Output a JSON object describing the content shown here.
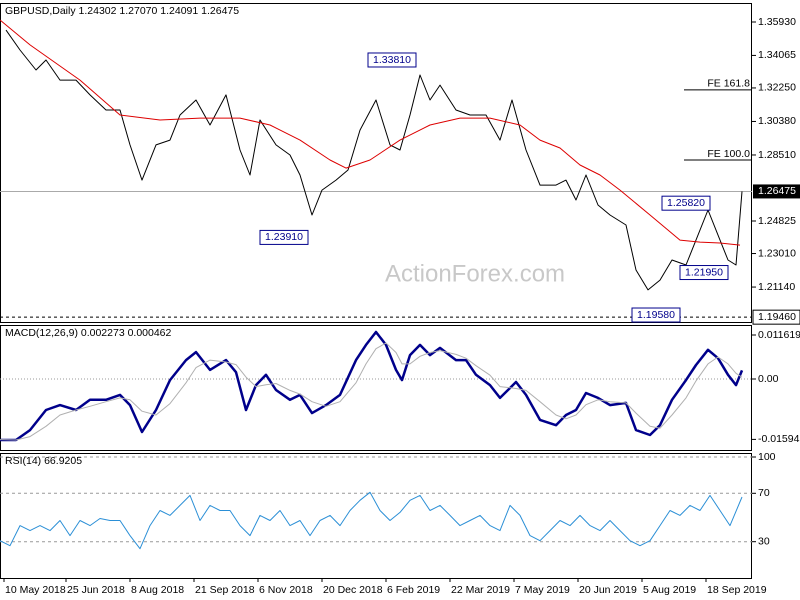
{
  "chart_data": [
    {
      "type": "line",
      "title": "GBPUSD,Daily  1.24302 1.27070 1.24091 1.26475",
      "watermark": "ActionForex.com",
      "xlim": [
        0,
        376
      ],
      "ylim": [
        1.1919,
        1.3699
      ],
      "yticks": [
        {
          "value": 1.3593,
          "label": "1.35930"
        },
        1.34065,
        {
          "value": 1.3225,
          "label": "1.32250"
        },
        {
          "value": 1.3038,
          "label": "1.30380"
        },
        {
          "value": 1.2851,
          "label": "1.28510"
        },
        1.24825,
        {
          "value": 1.2301,
          "label": "1.23010"
        },
        {
          "value": 1.2114,
          "label": "1.21140"
        }
      ],
      "grid": false,
      "series": [
        {
          "color": "#000000",
          "width": 1,
          "x": [
            3,
            10,
            18,
            23,
            30,
            38,
            45,
            53,
            60,
            65,
            71,
            78,
            85,
            90,
            98,
            105,
            113,
            120,
            125,
            130,
            138,
            145,
            150,
            156,
            161,
            168,
            174,
            180,
            188,
            195,
            200,
            205,
            210,
            215,
            220,
            228,
            235,
            243,
            250,
            256,
            263,
            270,
            278,
            283,
            288,
            293,
            299,
            305,
            313,
            318,
            324,
            330,
            336,
            343,
            348,
            354,
            359,
            364,
            368,
            371
          ],
          "values": [
            1.3548,
            1.3437,
            1.3325,
            1.3381,
            1.3269,
            1.3269,
            1.3186,
            1.3102,
            1.3102,
            1.2907,
            1.2711,
            1.2907,
            1.2934,
            1.3074,
            1.3158,
            1.3018,
            1.3186,
            1.2879,
            1.2739,
            1.3046,
            1.2907,
            1.2851,
            1.2739,
            1.2516,
            1.2655,
            1.2711,
            1.2767,
            1.299,
            1.3158,
            1.2907,
            1.2879,
            1.3074,
            1.3297,
            1.3158,
            1.3241,
            1.3102,
            1.3074,
            1.3074,
            1.2934,
            1.3158,
            1.2879,
            1.2683,
            1.2683,
            1.2711,
            1.26,
            1.2739,
            1.2572,
            1.2516,
            1.246,
            1.2209,
            1.2098,
            1.2153,
            1.2265,
            1.2237,
            1.2376,
            1.2544,
            1.2404,
            1.2265,
            1.2237,
            1.26475
          ]
        },
        {
          "color": "#dd0000",
          "width": 1,
          "x": [
            0,
            15,
            40,
            60,
            80,
            100,
            120,
            135,
            150,
            165,
            173,
            185,
            200,
            215,
            230,
            245,
            260,
            270,
            280,
            290,
            300,
            310,
            325,
            340,
            350,
            360,
            370
          ],
          "values": [
            1.3604,
            1.3465,
            1.3269,
            1.3074,
            1.3046,
            1.3057,
            1.3057,
            1.3018,
            1.2934,
            1.2823,
            1.2778,
            1.2823,
            1.2934,
            1.3018,
            1.3057,
            1.3057,
            1.3018,
            1.2934,
            1.289,
            1.2795,
            1.2739,
            1.2655,
            1.2516,
            1.2376,
            1.2365,
            1.236,
            1.2348
          ]
        }
      ],
      "annotations": [
        {
          "x": 155,
          "value": 1.2391,
          "label": "1.23910"
        },
        {
          "x": 209,
          "value": 1.3381,
          "label": "1.33810"
        },
        {
          "x": 341,
          "value": 1.1958,
          "label": "1.19580"
        },
        {
          "x": 356,
          "value": 1.2582,
          "label": "1.25820"
        },
        {
          "x": 365,
          "value": 1.2195,
          "label": "1.21950"
        }
      ],
      "levels": [
        {
          "value": 1.3214,
          "label": "FE 161.8"
        },
        {
          "value": 1.2823,
          "label": "FE 100.0"
        }
      ],
      "price_line": {
        "value": 1.26475,
        "label": "1.26475"
      },
      "support_line": {
        "value": 1.1946,
        "label": "1.19460"
      }
    },
    {
      "type": "line",
      "title": "MACD(12,26,9) 0.002273 0.000462",
      "xlim": [
        0,
        376
      ],
      "ylim": [
        -0.01875,
        0.01426
      ],
      "yticks": [
        0.011619,
        {
          "value": 0,
          "label": "0.00"
        },
        -0.015949
      ],
      "grid": false,
      "zero_line": true,
      "series": [
        {
          "color": "#00008b",
          "width": 2.5,
          "x": [
            0,
            8,
            15,
            23,
            30,
            38,
            45,
            53,
            60,
            65,
            71,
            78,
            85,
            93,
            98,
            105,
            113,
            118,
            123,
            128,
            133,
            138,
            145,
            150,
            156,
            163,
            170,
            178,
            183,
            188,
            193,
            198,
            201,
            205,
            210,
            215,
            220,
            228,
            233,
            238,
            245,
            250,
            258,
            263,
            270,
            278,
            283,
            288,
            293,
            299,
            305,
            313,
            318,
            325,
            330,
            336,
            343,
            348,
            354,
            359,
            364,
            368,
            371
          ],
          "values": [
            -0.0161,
            -0.0161,
            -0.0135,
            -0.0082,
            -0.0069,
            -0.0082,
            -0.0055,
            -0.0055,
            -0.0042,
            -0.0069,
            -0.014,
            -0.0082,
            -0.0003,
            0.005,
            0.0071,
            0.0024,
            0.005,
            0.0018,
            -0.0082,
            -0.0016,
            0.0011,
            -0.0029,
            -0.0055,
            -0.0042,
            -0.009,
            -0.0069,
            -0.0042,
            0.005,
            0.009,
            0.0124,
            0.009,
            0.0024,
            -0.0003,
            0.0063,
            0.009,
            0.0063,
            0.0082,
            0.005,
            0.005,
            0.0011,
            -0.0016,
            -0.005,
            -0.0008,
            -0.0042,
            -0.0108,
            -0.0122,
            -0.0095,
            -0.0082,
            -0.0037,
            -0.005,
            -0.0069,
            -0.0063,
            -0.0135,
            -0.0148,
            -0.0122,
            -0.0055,
            -0.0003,
            0.0037,
            0.0077,
            0.0055,
            0.0011,
            -0.0016,
            0.002273
          ]
        },
        {
          "color": "#b0b0b0",
          "width": 1,
          "x": [
            0,
            8,
            15,
            23,
            30,
            38,
            45,
            53,
            60,
            65,
            71,
            78,
            85,
            93,
            98,
            105,
            113,
            118,
            123,
            128,
            133,
            138,
            145,
            150,
            156,
            163,
            170,
            178,
            183,
            188,
            193,
            198,
            201,
            205,
            210,
            215,
            220,
            228,
            233,
            238,
            245,
            250,
            258,
            263,
            270,
            278,
            283,
            288,
            293,
            299,
            305,
            313,
            318,
            325,
            330,
            336,
            343,
            348,
            354,
            359,
            364,
            368,
            371
          ],
          "values": [
            -0.016,
            -0.0161,
            -0.0152,
            -0.0125,
            -0.0095,
            -0.0082,
            -0.0072,
            -0.006,
            -0.005,
            -0.0055,
            -0.0085,
            -0.0095,
            -0.0065,
            -0.001,
            0.003,
            0.005,
            0.0045,
            0.0038,
            0.0005,
            -0.002,
            -0.0015,
            -0.0012,
            -0.003,
            -0.004,
            -0.006,
            -0.0072,
            -0.006,
            -0.001,
            0.004,
            0.008,
            0.0095,
            0.007,
            0.004,
            0.004,
            0.006,
            0.007,
            0.0075,
            0.0065,
            0.0055,
            0.0035,
            0.001,
            -0.002,
            -0.0025,
            -0.003,
            -0.006,
            -0.0095,
            -0.0105,
            -0.0095,
            -0.0068,
            -0.0055,
            -0.006,
            -0.0063,
            -0.009,
            -0.0125,
            -0.013,
            -0.0095,
            -0.005,
            -0.0005,
            0.004,
            0.0058,
            0.004,
            0.0015,
            0.000462
          ]
        }
      ]
    },
    {
      "type": "line",
      "title": "RSI(14) 66.9205",
      "xlim": [
        0,
        376
      ],
      "ylim": [
        0,
        103.3
      ],
      "yticks": [
        100,
        70,
        30
      ],
      "grid": true,
      "xticks": [
        {
          "value": 2,
          "label": "10 May 2018"
        },
        {
          "value": 33,
          "label": "25 Jun 2018"
        },
        {
          "value": 65,
          "label": "8 Aug 2018"
        },
        {
          "value": 97,
          "label": "21 Sep 2018"
        },
        {
          "value": 129,
          "label": "6 Nov 2018"
        },
        {
          "value": 161,
          "label": "20 Dec 2018"
        },
        {
          "value": 193,
          "label": "6 Feb 2019"
        },
        {
          "value": 225,
          "label": "22 Mar 2019"
        },
        {
          "value": 257,
          "label": "7 May 2019"
        },
        {
          "value": 289,
          "label": "20 Jun 2019"
        },
        {
          "value": 321,
          "label": "5 Aug 2019"
        },
        {
          "value": 353,
          "label": "18 Sep 2019"
        }
      ],
      "series": [
        {
          "color": "#2b8fd6",
          "width": 1,
          "x": [
            0,
            5,
            10,
            15,
            20,
            25,
            30,
            35,
            40,
            45,
            50,
            55,
            60,
            65,
            70,
            75,
            80,
            85,
            90,
            95,
            100,
            105,
            110,
            115,
            120,
            125,
            130,
            135,
            140,
            145,
            150,
            155,
            160,
            165,
            170,
            175,
            180,
            185,
            190,
            195,
            200,
            205,
            210,
            215,
            220,
            225,
            230,
            235,
            240,
            245,
            250,
            255,
            260,
            265,
            270,
            275,
            280,
            285,
            290,
            295,
            300,
            305,
            310,
            315,
            320,
            325,
            330,
            335,
            340,
            345,
            350,
            355,
            360,
            365,
            371
          ],
          "values": [
            30.8,
            26.7,
            43.3,
            39.2,
            43.3,
            39.2,
            47.5,
            35,
            47.5,
            43.3,
            49.2,
            47.5,
            47.5,
            35,
            24.2,
            43.3,
            55.8,
            51.7,
            60,
            68.3,
            47.5,
            60,
            55.8,
            55.8,
            43.3,
            35,
            51.7,
            47.5,
            55.8,
            43.3,
            47.5,
            35,
            47.5,
            51.7,
            43.3,
            55.8,
            64.2,
            70.8,
            55.8,
            47.5,
            54.2,
            64.2,
            68.3,
            55.8,
            60,
            51.7,
            43.3,
            47.5,
            51.7,
            43.3,
            39.2,
            60,
            51.7,
            35,
            30.8,
            39.2,
            47.5,
            43.3,
            51.7,
            43.3,
            39.2,
            47.5,
            39.2,
            30.8,
            26.7,
            30.8,
            43.3,
            55.8,
            51.7,
            60,
            55.8,
            68.3,
            55.8,
            43.3,
            66.9205
          ]
        }
      ]
    }
  ]
}
